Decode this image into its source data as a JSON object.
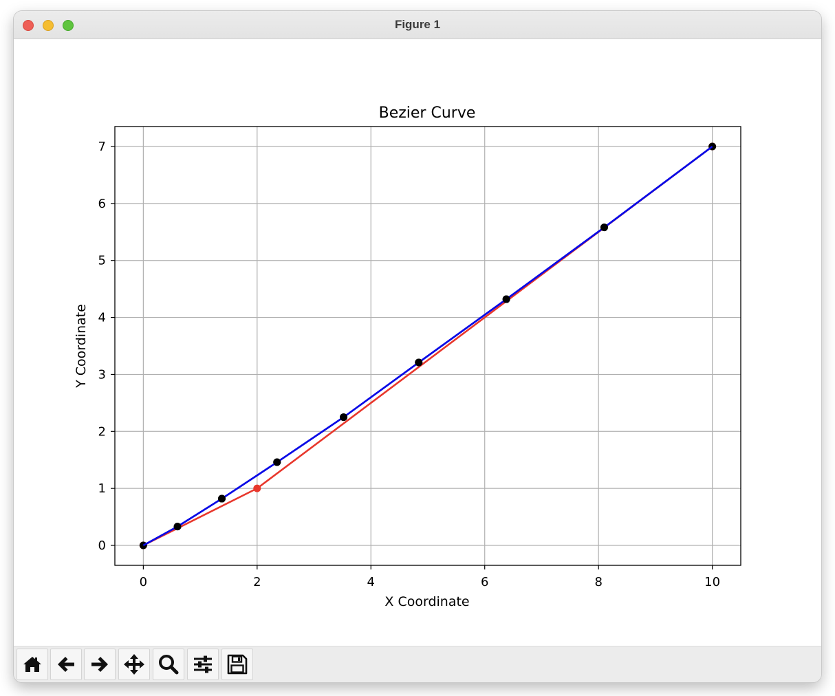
{
  "window": {
    "title": "Figure 1"
  },
  "toolbar": {
    "buttons": [
      {
        "name": "home",
        "icon": "home-icon"
      },
      {
        "name": "back",
        "icon": "arrow-left-icon"
      },
      {
        "name": "forward",
        "icon": "arrow-right-icon"
      },
      {
        "name": "pan",
        "icon": "move-arrows-icon"
      },
      {
        "name": "zoom",
        "icon": "magnifier-icon"
      },
      {
        "name": "configure-subplots",
        "icon": "sliders-icon"
      },
      {
        "name": "save",
        "icon": "floppy-disk-icon"
      }
    ]
  },
  "chart_data": {
    "type": "line",
    "title": "Bezier Curve",
    "xlabel": "X Coordinate",
    "ylabel": "Y Coordinate",
    "xlim": [
      -0.5,
      10.5
    ],
    "ylim": [
      -0.35,
      7.35
    ],
    "xticks": [
      0,
      2,
      4,
      6,
      8,
      10
    ],
    "yticks": [
      0,
      1,
      2,
      3,
      4,
      5,
      6,
      7
    ],
    "grid": true,
    "series": [
      {
        "color": "#e8372c",
        "marker_color": "#e8372c",
        "x": [
          0,
          2,
          10
        ],
        "y": [
          0,
          1,
          7
        ]
      },
      {
        "color": "#0a0ae6",
        "marker_color": "#000000",
        "x": [
          0,
          0.6,
          1.38,
          2.35,
          3.52,
          4.84,
          6.38,
          8.1,
          10
        ],
        "y": [
          0,
          0.33,
          0.82,
          1.46,
          2.25,
          3.21,
          4.32,
          5.58,
          7
        ]
      }
    ]
  }
}
